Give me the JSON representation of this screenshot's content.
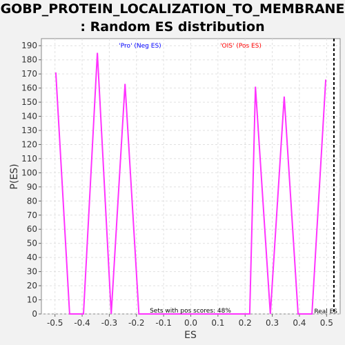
{
  "chart_data": {
    "type": "line",
    "title_lines": [
      "GOBP_PROTEIN_LOCALIZATION_TO_MEMBRANE",
      ": Random ES distribution"
    ],
    "xlabel": "ES",
    "ylabel": "P(ES)",
    "xlim": [
      -0.55,
      0.55
    ],
    "ylim": [
      0,
      195
    ],
    "x_ticks": [
      -0.5,
      -0.4,
      -0.3,
      -0.2,
      -0.1,
      0.0,
      0.1,
      0.2,
      0.3,
      0.4,
      0.5
    ],
    "x_tick_labels": [
      "-0.5",
      "-0.4",
      "-0.3",
      "-0.2",
      "-0.1",
      "0.0",
      "0.1",
      "0.2",
      "0.3",
      "0.4",
      "0.5"
    ],
    "y_ticks": [
      0,
      10,
      20,
      30,
      40,
      50,
      60,
      70,
      80,
      90,
      100,
      110,
      120,
      130,
      140,
      150,
      160,
      170,
      180,
      190
    ],
    "grid": true,
    "series": [
      {
        "color": "#ff33ff",
        "x": [
          -0.497,
          -0.446,
          -0.395,
          -0.344,
          -0.293,
          -0.242,
          -0.191,
          -0.14,
          -0.089,
          -0.038,
          0.013,
          0.064,
          0.115,
          0.166,
          0.217,
          0.238,
          0.293,
          0.344,
          0.395,
          0.446,
          0.497
        ],
        "y": [
          171,
          0,
          0,
          185,
          0,
          163,
          0,
          0,
          0,
          0,
          0,
          0,
          0,
          0,
          0,
          161,
          0,
          154,
          0,
          0,
          166
        ]
      }
    ],
    "real_es": {
      "x": 0.527,
      "label": "Real ES",
      "color": "#000000"
    },
    "legend": [
      {
        "label": "'Pro' (Neg ES)",
        "color": "#0000ff",
        "position": "top-left"
      },
      {
        "label": "'OIS' (Pos ES)",
        "color": "#ff0000",
        "position": "top-right"
      }
    ],
    "annotation": "Sets with pos scores: 48%"
  }
}
